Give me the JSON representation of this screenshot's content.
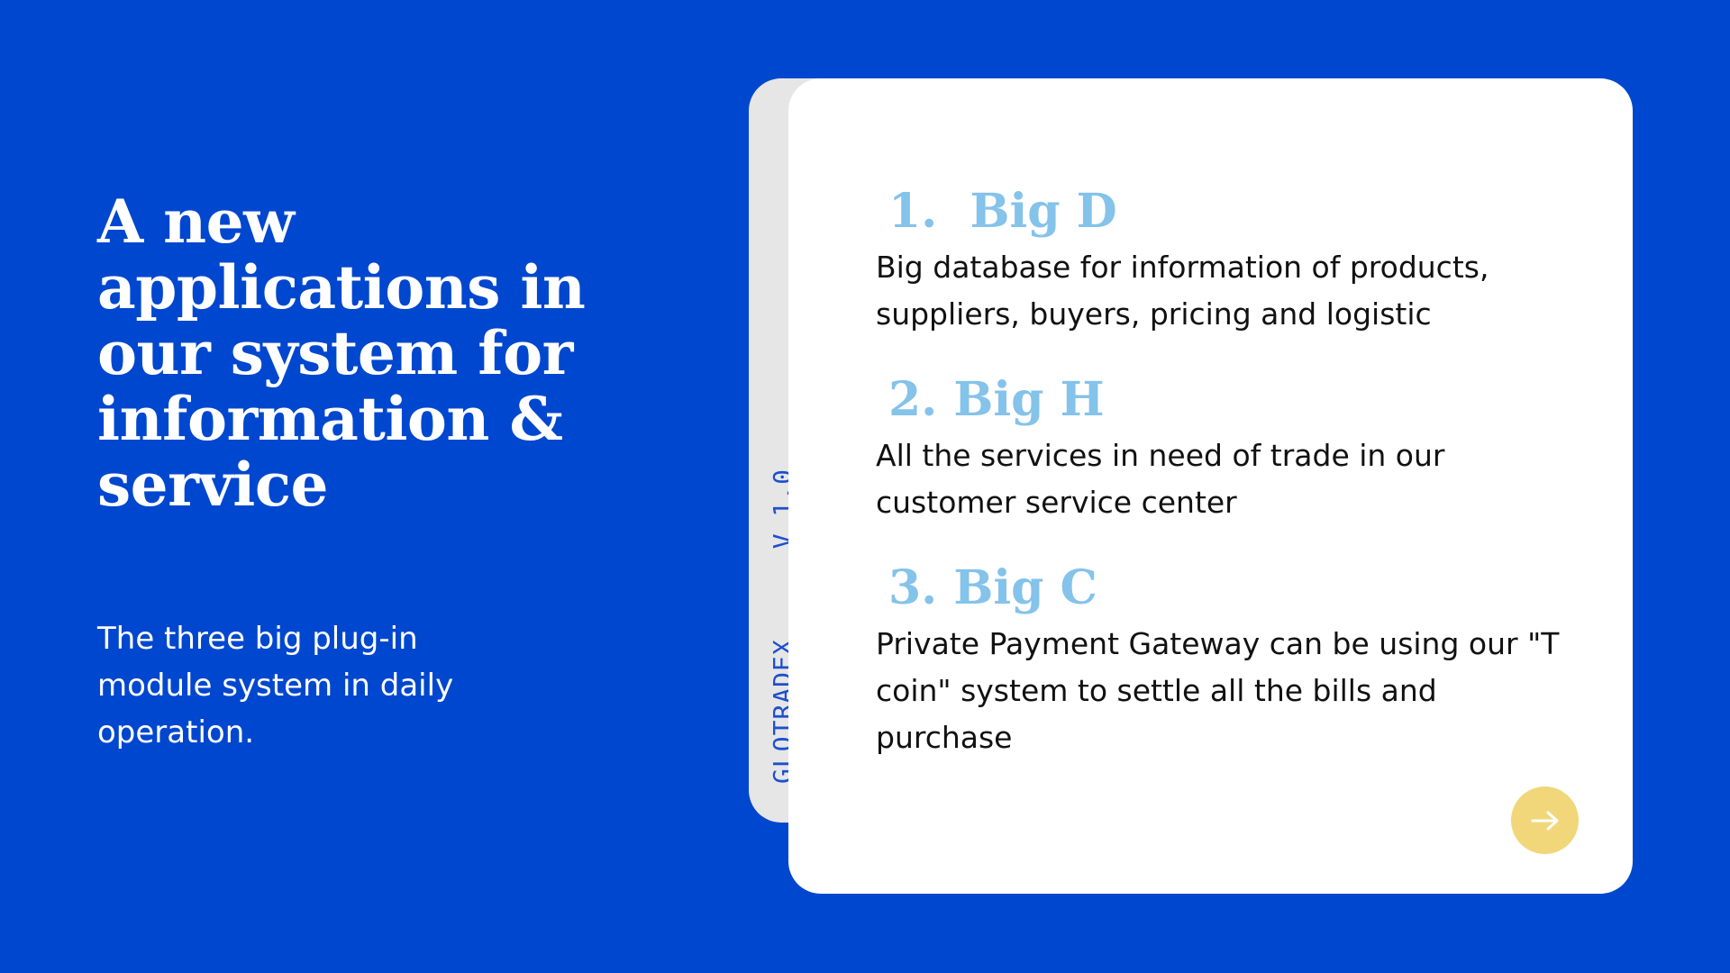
{
  "slide": {
    "headline": "A new applications in our system for information & service",
    "subtext": "The three big plug-in module system in daily operation."
  },
  "side_label": {
    "brand": "GLOTRADEX",
    "version": "V 1.0"
  },
  "items": [
    {
      "title": "1.  Big D",
      "description": "Big database for information of products, suppliers, buyers, pricing and logistic"
    },
    {
      "title": "2. Big H",
      "description": "All the services in need of trade in our customer service center"
    },
    {
      "title": "3. Big C",
      "description": "Private Payment Gateway can be using our \"T coin\" system to settle all the bills and purchase"
    }
  ],
  "navigation": {
    "next_icon": "arrow-right-icon"
  },
  "colors": {
    "background": "#0047CF",
    "card": "#FFFFFF",
    "card_tab": "#E6E6E6",
    "item_title": "#84C3EA",
    "next_button": "#F1D77A",
    "side_label": "#1D4FCF"
  }
}
